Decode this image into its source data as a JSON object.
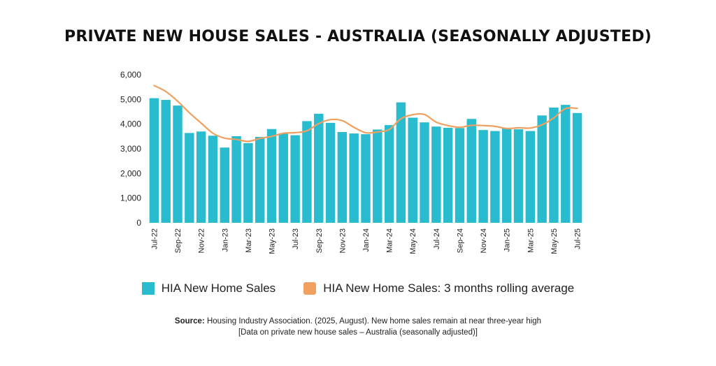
{
  "title": "PRIVATE NEW HOUSE SALES - AUSTRALIA (SEASONALLY ADJUSTED)",
  "legend": {
    "bars": "HIA New Home Sales",
    "line": "HIA New Home Sales: 3 months rolling average"
  },
  "source": {
    "label": "Source:",
    "text": "Housing Industry Association. (2025, August). New home sales remain at near three-year high",
    "line2": "[Data on private new house sales – Australia (seasonally adjusted)]"
  },
  "colors": {
    "bar": "#29bccf",
    "line": "#f0a060"
  },
  "chart_data": {
    "type": "bar",
    "title": "PRIVATE NEW HOUSE SALES - AUSTRALIA (SEASONALLY ADJUSTED)",
    "ylim": [
      0,
      6000
    ],
    "yticks": [
      "0",
      "1,000",
      "2,000",
      "3,000",
      "4,000",
      "5,000",
      "6,000"
    ],
    "grid": false,
    "legend_position": "bottom",
    "categories": [
      "Jul-22",
      "Aug-22",
      "Sep-22",
      "Oct-22",
      "Nov-22",
      "Dec-22",
      "Jan-23",
      "Feb-23",
      "Mar-23",
      "Apr-23",
      "May-23",
      "Jun-23",
      "Jul-23",
      "Aug-23",
      "Sep-23",
      "Oct-23",
      "Nov-23",
      "Dec-23",
      "Jan-24",
      "Feb-24",
      "Mar-24",
      "Apr-24",
      "May-24",
      "Jun-24",
      "Jul-24",
      "Aug-24",
      "Sep-24",
      "Oct-24",
      "Nov-24",
      "Dec-24",
      "Jan-25",
      "Feb-25",
      "Mar-25",
      "Apr-25",
      "May-25",
      "Jun-25",
      "Jul-25"
    ],
    "xtick_labels": [
      "Jul-22",
      "Sep-22",
      "Nov-22",
      "Jan-23",
      "Mar-23",
      "May-23",
      "Jul-23",
      "Sep-23",
      "Nov-23",
      "Jan-24",
      "Mar-24",
      "May-24",
      "Jul-24",
      "Sep-24",
      "Nov-24",
      "Jan-25",
      "Mar-25",
      "May-25",
      "Jul-25"
    ],
    "series": [
      {
        "name": "HIA New Home Sales",
        "type": "bar",
        "values": [
          5050,
          4980,
          4750,
          3640,
          3700,
          3530,
          3050,
          3510,
          3230,
          3480,
          3800,
          3610,
          3550,
          4120,
          4420,
          4050,
          3680,
          3620,
          3590,
          3780,
          3960,
          4880,
          4260,
          4070,
          3900,
          3850,
          3840,
          4210,
          3760,
          3720,
          3840,
          3790,
          3720,
          4350,
          4670,
          4780,
          4450
        ]
      },
      {
        "name": "HIA New Home Sales: 3 months rolling average",
        "type": "line",
        "values": [
          5560,
          5320,
          4930,
          4460,
          4040,
          3630,
          3430,
          3380,
          3300,
          3420,
          3500,
          3630,
          3650,
          3730,
          4020,
          4180,
          4140,
          3870,
          3650,
          3680,
          3780,
          4220,
          4380,
          4390,
          4080,
          3940,
          3870,
          3950,
          3940,
          3910,
          3820,
          3850,
          3840,
          3970,
          4250,
          4630,
          4640
        ]
      }
    ]
  }
}
